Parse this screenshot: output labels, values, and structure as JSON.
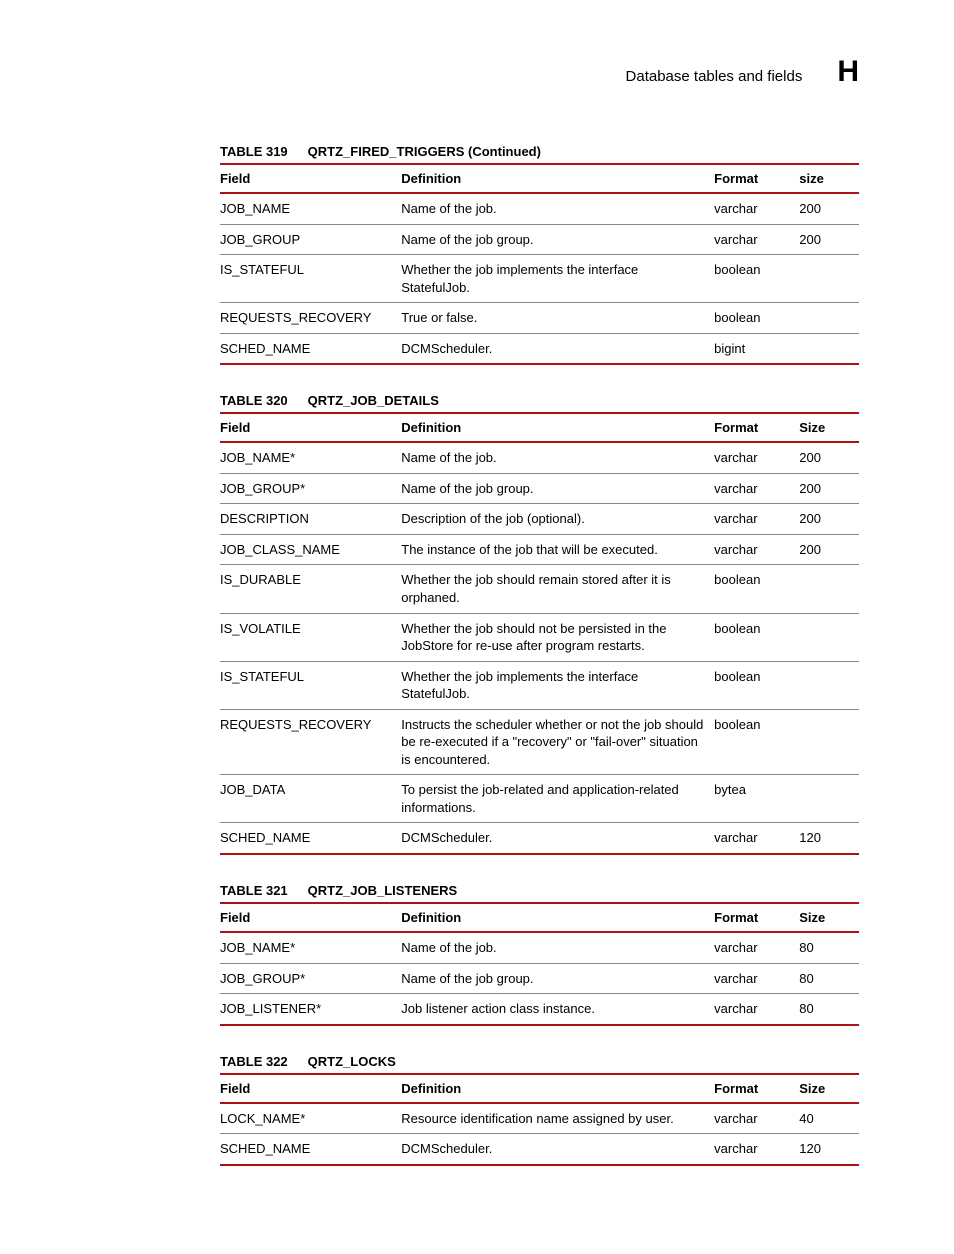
{
  "header": {
    "title": "Database tables and fields",
    "letter": "H"
  },
  "columns": {
    "field": "Field",
    "definition": "Definition",
    "format": "Format",
    "size_lower": "size",
    "size": "Size"
  },
  "tables": [
    {
      "number": "TABLE 319",
      "name": "QRTZ_FIRED_TRIGGERS (Continued)",
      "size_header": "size_lower",
      "rows": [
        {
          "field": "JOB_NAME",
          "definition": "Name of the job.",
          "format": "varchar",
          "size": "200"
        },
        {
          "field": "JOB_GROUP",
          "definition": "Name of the job group.",
          "format": "varchar",
          "size": "200"
        },
        {
          "field": "IS_STATEFUL",
          "definition": "Whether the job implements the interface StatefulJob.",
          "format": "boolean",
          "size": ""
        },
        {
          "field": "REQUESTS_RECOVERY",
          "definition": "True or false.",
          "format": "boolean",
          "size": ""
        },
        {
          "field": "SCHED_NAME",
          "definition": "DCMScheduler.",
          "format": "bigint",
          "size": ""
        }
      ]
    },
    {
      "number": "TABLE 320",
      "name": "QRTZ_JOB_DETAILS",
      "size_header": "size",
      "rows": [
        {
          "field": "JOB_NAME*",
          "definition": "Name of the job.",
          "format": "varchar",
          "size": "200"
        },
        {
          "field": "JOB_GROUP*",
          "definition": "Name of the job group.",
          "format": "varchar",
          "size": "200"
        },
        {
          "field": "DESCRIPTION",
          "definition": "Description of the job (optional).",
          "format": "varchar",
          "size": "200"
        },
        {
          "field": "JOB_CLASS_NAME",
          "definition": "The instance of the job that will be executed.",
          "format": "varchar",
          "size": "200"
        },
        {
          "field": "IS_DURABLE",
          "definition": "Whether the job should remain stored after it is orphaned.",
          "format": "boolean",
          "size": ""
        },
        {
          "field": "IS_VOLATILE",
          "definition": "Whether the job should not be persisted in the JobStore for re-use after program restarts.",
          "format": "boolean",
          "size": ""
        },
        {
          "field": "IS_STATEFUL",
          "definition": "Whether the job implements the interface StatefulJob.",
          "format": "boolean",
          "size": ""
        },
        {
          "field": "REQUESTS_RECOVERY",
          "definition": "Instructs the scheduler whether or not the job should be re-executed if a \"recovery\" or \"fail-over\" situation is encountered.",
          "format": "boolean",
          "size": ""
        },
        {
          "field": "JOB_DATA",
          "definition": "To persist the job-related and application-related informations.",
          "format": "bytea",
          "size": ""
        },
        {
          "field": "SCHED_NAME",
          "definition": "DCMScheduler.",
          "format": "varchar",
          "size": "120"
        }
      ]
    },
    {
      "number": "TABLE 321",
      "name": "QRTZ_JOB_LISTENERS",
      "size_header": "size",
      "rows": [
        {
          "field": "JOB_NAME*",
          "definition": "Name of the job.",
          "format": "varchar",
          "size": "80"
        },
        {
          "field": "JOB_GROUP*",
          "definition": "Name of the job group.",
          "format": "varchar",
          "size": "80"
        },
        {
          "field": "JOB_LISTENER*",
          "definition": "Job listener action class instance.",
          "format": "varchar",
          "size": "80"
        }
      ]
    },
    {
      "number": "TABLE 322",
      "name": "QRTZ_LOCKS",
      "size_header": "size",
      "rows": [
        {
          "field": "LOCK_NAME*",
          "definition": "Resource identification name assigned by user.",
          "format": "varchar",
          "size": "40"
        },
        {
          "field": "SCHED_NAME",
          "definition": "DCMScheduler.",
          "format": "varchar",
          "size": "120"
        }
      ]
    }
  ]
}
